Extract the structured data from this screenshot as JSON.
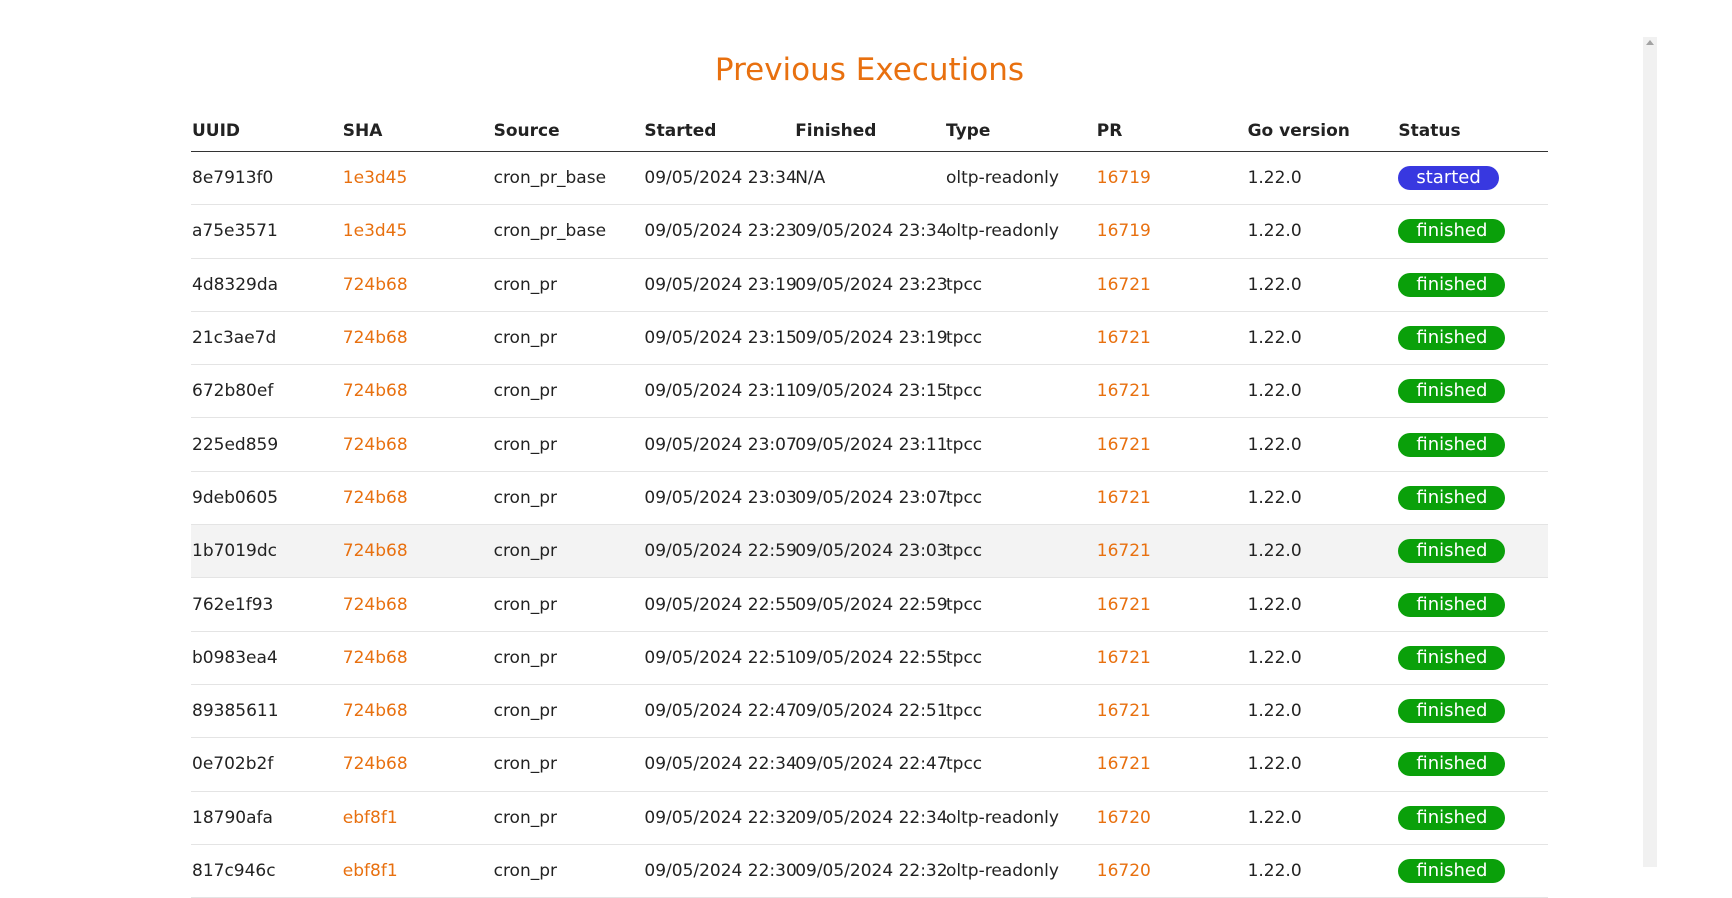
{
  "title": "Previous Executions",
  "status_colors": {
    "started": "#3838e0",
    "finished": "#0aa00a"
  },
  "table": {
    "header": [
      "UUID",
      "SHA",
      "Source",
      "Started",
      "Finished",
      "Type",
      "PR",
      "Go version",
      "Status"
    ],
    "rows": [
      [
        "8e7913f0",
        "1e3d45",
        "cron_pr_base",
        "09/05/2024 23:34",
        "N/A",
        "oltp-readonly",
        "16719",
        "1.22.0",
        "started"
      ],
      [
        "a75e3571",
        "1e3d45",
        "cron_pr_base",
        "09/05/2024 23:23",
        "09/05/2024 23:34",
        "oltp-readonly",
        "16719",
        "1.22.0",
        "finished"
      ],
      [
        "4d8329da",
        "724b68",
        "cron_pr",
        "09/05/2024 23:19",
        "09/05/2024 23:23",
        "tpcc",
        "16721",
        "1.22.0",
        "finished"
      ],
      [
        "21c3ae7d",
        "724b68",
        "cron_pr",
        "09/05/2024 23:15",
        "09/05/2024 23:19",
        "tpcc",
        "16721",
        "1.22.0",
        "finished"
      ],
      [
        "672b80ef",
        "724b68",
        "cron_pr",
        "09/05/2024 23:11",
        "09/05/2024 23:15",
        "tpcc",
        "16721",
        "1.22.0",
        "finished"
      ],
      [
        "225ed859",
        "724b68",
        "cron_pr",
        "09/05/2024 23:07",
        "09/05/2024 23:11",
        "tpcc",
        "16721",
        "1.22.0",
        "finished"
      ],
      [
        "9deb0605",
        "724b68",
        "cron_pr",
        "09/05/2024 23:03",
        "09/05/2024 23:07",
        "tpcc",
        "16721",
        "1.22.0",
        "finished"
      ],
      [
        "1b7019dc",
        "724b68",
        "cron_pr",
        "09/05/2024 22:59",
        "09/05/2024 23:03",
        "tpcc",
        "16721",
        "1.22.0",
        "finished"
      ],
      [
        "762e1f93",
        "724b68",
        "cron_pr",
        "09/05/2024 22:55",
        "09/05/2024 22:59",
        "tpcc",
        "16721",
        "1.22.0",
        "finished"
      ],
      [
        "b0983ea4",
        "724b68",
        "cron_pr",
        "09/05/2024 22:51",
        "09/05/2024 22:55",
        "tpcc",
        "16721",
        "1.22.0",
        "finished"
      ],
      [
        "89385611",
        "724b68",
        "cron_pr",
        "09/05/2024 22:47",
        "09/05/2024 22:51",
        "tpcc",
        "16721",
        "1.22.0",
        "finished"
      ],
      [
        "0e702b2f",
        "724b68",
        "cron_pr",
        "09/05/2024 22:34",
        "09/05/2024 22:47",
        "tpcc",
        "16721",
        "1.22.0",
        "finished"
      ],
      [
        "18790afa",
        "ebf8f1",
        "cron_pr",
        "09/05/2024 22:32",
        "09/05/2024 22:34",
        "oltp-readonly",
        "16720",
        "1.22.0",
        "finished"
      ],
      [
        "817c946c",
        "ebf8f1",
        "cron_pr",
        "09/05/2024 22:30",
        "09/05/2024 22:32",
        "oltp-readonly",
        "16720",
        "1.22.0",
        "finished"
      ]
    ]
  }
}
